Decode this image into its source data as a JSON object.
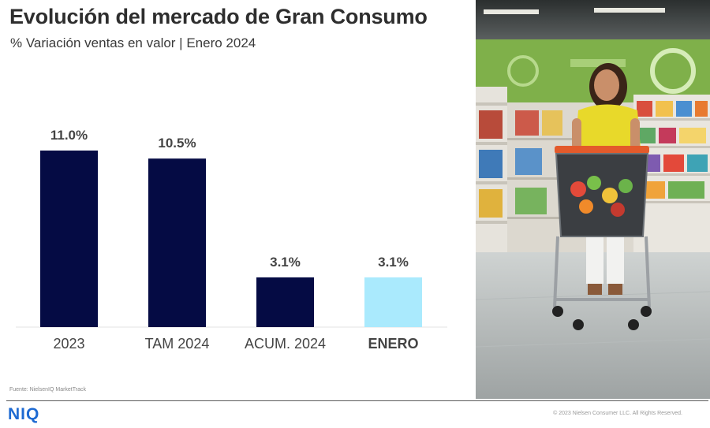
{
  "header": {
    "title": "Evolución del mercado de Gran Consumo",
    "subtitle": "% Variación ventas en valor | Enero 2024"
  },
  "chart_data": {
    "type": "bar",
    "categories": [
      "2023",
      "TAM 2024",
      "ACUM. 2024",
      "ENERO"
    ],
    "values": [
      11.0,
      10.5,
      3.1,
      3.1
    ],
    "value_labels": [
      "11.0%",
      "10.5%",
      "3.1%",
      "3.1%"
    ],
    "highlighted_category": "ENERO",
    "ylim": [
      0,
      11.0
    ],
    "grid": false,
    "legend": "none",
    "colors": {
      "default_bar": "#050b44",
      "highlight_bar": "#aaeafd",
      "label_text": "#444444",
      "axis": "#e3e3e3"
    }
  },
  "footer": {
    "source": "Fuente: NielsenIQ MarketTrack",
    "logo_text": "NIQ",
    "copyright": "© 2023 Nielsen Consumer LLC. All Rights Reserved."
  },
  "photo": {
    "icon": "supermarket-shopper-photo"
  },
  "colors": {
    "brand_blue": "#1e6ad2"
  }
}
